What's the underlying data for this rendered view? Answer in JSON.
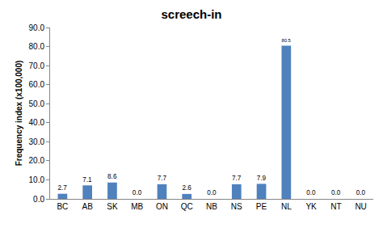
{
  "chart_data": {
    "type": "bar",
    "title": "screech-in",
    "y_label": "Frequency index (x100,000)",
    "categories": [
      "BC",
      "AB",
      "SK",
      "MB",
      "ON",
      "QC",
      "NB",
      "NS",
      "PE",
      "NL",
      "YK",
      "NT",
      "NU"
    ],
    "values": [
      2.7,
      7.1,
      8.6,
      0.0,
      7.7,
      2.6,
      0.0,
      7.7,
      7.9,
      80.5,
      0.0,
      0.0,
      0.0
    ],
    "value_labels": [
      "2.7",
      "7.1",
      "8.6",
      "0.0",
      "7.7",
      "2.6",
      "0.0",
      "7.7",
      "7.9",
      "80.5",
      "0.0",
      "0.0",
      "0.0"
    ],
    "color": "#4f81bd",
    "ylim": [
      0,
      90
    ],
    "yticks": [
      {
        "value": 0,
        "label": "0.0"
      },
      {
        "value": 10,
        "label": "10.0"
      },
      {
        "value": 20,
        "label": "20.0"
      },
      {
        "value": 30,
        "label": "30.0"
      },
      {
        "value": 40,
        "label": "40.0"
      },
      {
        "value": 50,
        "label": "50.0"
      },
      {
        "value": 60,
        "label": "60.0"
      },
      {
        "value": 70,
        "label": "70.0"
      },
      {
        "value": 80,
        "label": "80.0"
      },
      {
        "value": 90,
        "label": "90.0"
      }
    ],
    "grid": false,
    "data_labels": true
  }
}
